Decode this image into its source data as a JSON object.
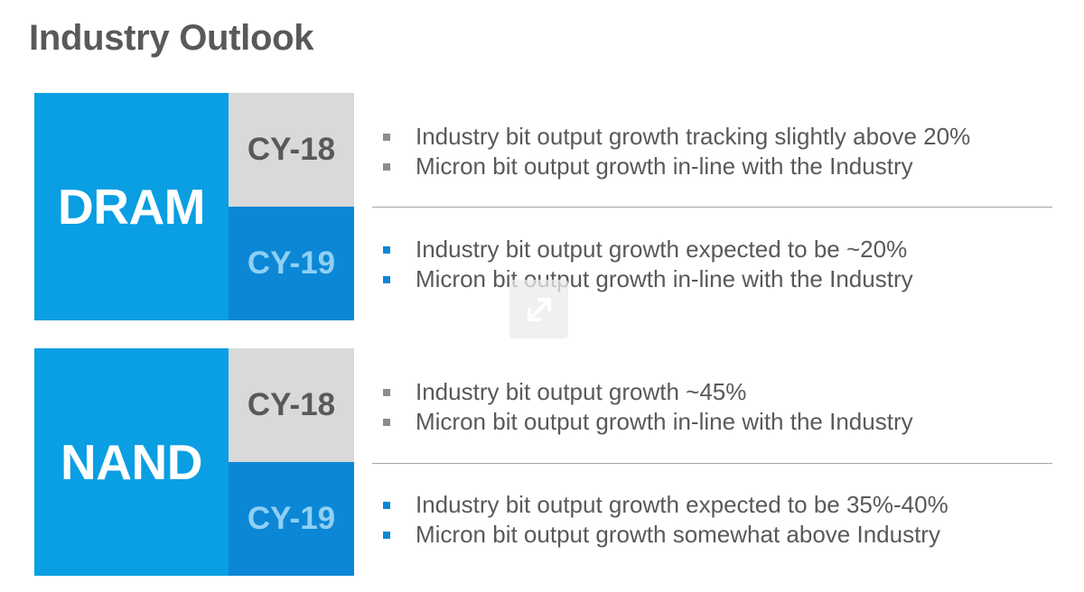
{
  "title": "Industry Outlook",
  "colors": {
    "primary_blue": "#0a9ee3",
    "dark_blue": "#0c87d6",
    "light_grey": "#d9d9d9",
    "text_grey": "#595959"
  },
  "segments": [
    {
      "name": "DRAM",
      "cy18": {
        "label": "CY-18",
        "bullets": [
          "Industry bit output growth tracking slightly above 20%",
          "Micron bit output growth in-line with the Industry"
        ]
      },
      "cy19": {
        "label": "CY-19",
        "bullets": [
          "Industry bit output growth expected to be ~20%",
          "Micron bit output growth in-line with the Industry"
        ]
      }
    },
    {
      "name": "NAND",
      "cy18": {
        "label": "CY-18",
        "bullets": [
          "Industry bit output growth ~45%",
          "Micron bit output growth in-line with the Industry"
        ]
      },
      "cy19": {
        "label": "CY-19",
        "bullets": [
          "Industry bit output growth expected to be 35%-40%",
          "Micron bit output growth somewhat above Industry"
        ]
      }
    }
  ],
  "overlay": {
    "icon": "expand-arrows-icon"
  }
}
